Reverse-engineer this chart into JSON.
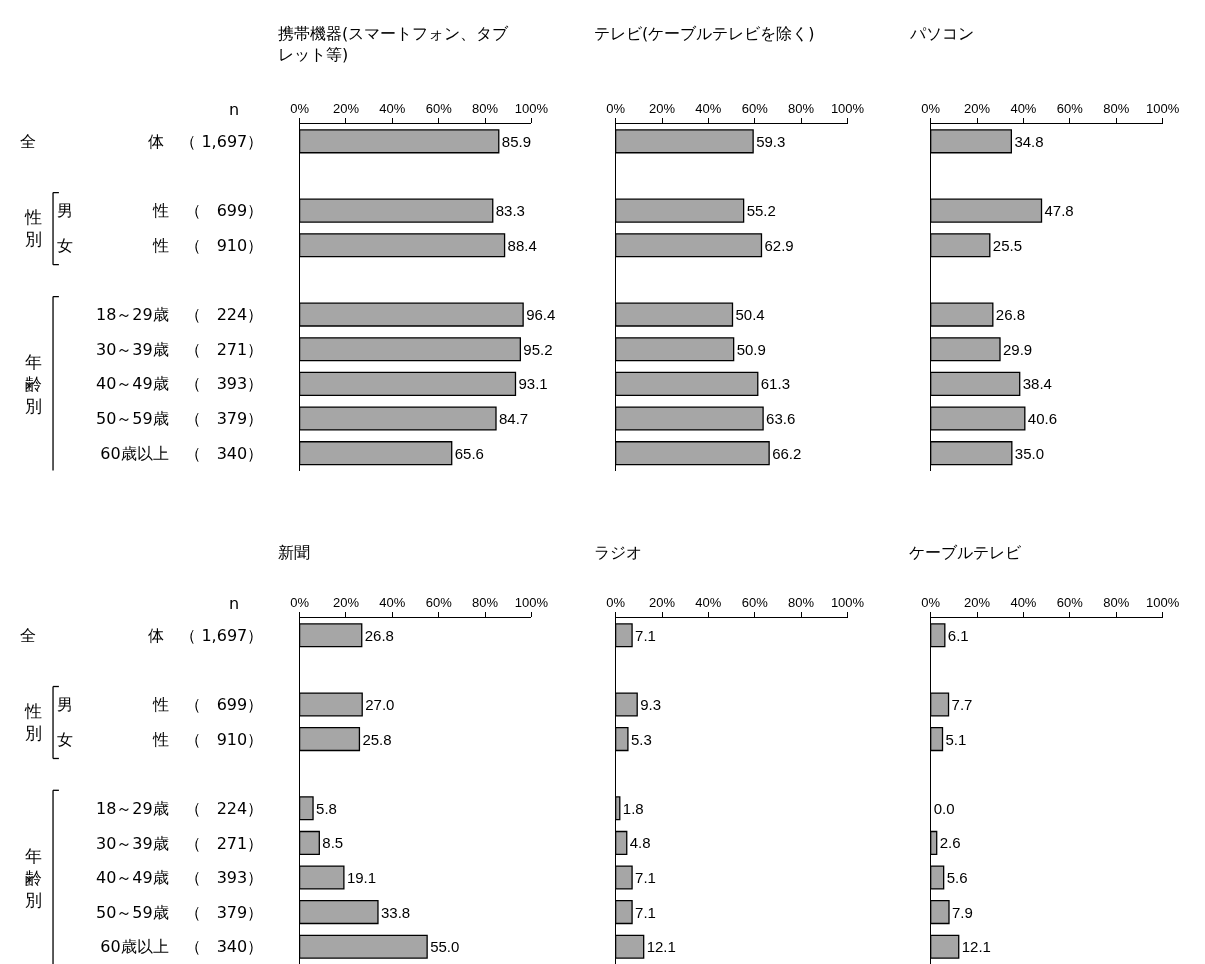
{
  "chart_data": [
    {
      "type": "bar",
      "orientation": "horizontal",
      "title": "携帯機器(スマートフォン、タブレット等)",
      "categories": [
        "全　　　　　　　体　（ 1,697）",
        null,
        "男　　　　　性　（　699）",
        "女　　　　　性　（　910）",
        null,
        "18～29歳　（　224）",
        "30～39歳　（　271）",
        "40～49歳　（　393）",
        "50～59歳　（　379）",
        "60歳以上　（　340）"
      ],
      "values": [
        85.9,
        null,
        83.3,
        88.4,
        null,
        96.4,
        95.2,
        93.1,
        84.7,
        65.6
      ],
      "value_labels": [
        "85.9",
        null,
        "83.3",
        "88.4",
        null,
        "96.4",
        "95.2",
        "93.1",
        "84.7",
        "65.6"
      ],
      "color": "#a6a6a6",
      "xlim": [
        0,
        100
      ],
      "xticks": [
        {
          "value": 0,
          "label": "0%"
        },
        {
          "value": 20,
          "label": "20%"
        },
        {
          "value": 40,
          "label": "40%"
        },
        {
          "value": 60,
          "label": "60%"
        },
        {
          "value": 80,
          "label": "80%"
        },
        {
          "value": 100,
          "label": "100%"
        }
      ],
      "annotations": [
        "n",
        "性別",
        "年齢別"
      ]
    },
    {
      "type": "bar",
      "orientation": "horizontal",
      "title": "テレビ(ケーブルテレビを除く)",
      "categories": [
        "全　　　　　　　体　（ 1,697）",
        null,
        "男　　　　　性　（　699）",
        "女　　　　　性　（　910）",
        null,
        "18～29歳　（　224）",
        "30～39歳　（　271）",
        "40～49歳　（　393）",
        "50～59歳　（　379）",
        "60歳以上　（　340）"
      ],
      "values": [
        59.3,
        null,
        55.2,
        62.9,
        null,
        50.4,
        50.9,
        61.3,
        63.6,
        66.2
      ],
      "value_labels": [
        "59.3",
        null,
        "55.2",
        "62.9",
        null,
        "50.4",
        "50.9",
        "61.3",
        "63.6",
        "66.2"
      ],
      "color": "#a6a6a6",
      "xlim": [
        0,
        100
      ],
      "xticks": [
        {
          "value": 0,
          "label": "0%"
        },
        {
          "value": 20,
          "label": "20%"
        },
        {
          "value": 40,
          "label": "40%"
        },
        {
          "value": 60,
          "label": "60%"
        },
        {
          "value": 80,
          "label": "80%"
        },
        {
          "value": 100,
          "label": "100%"
        }
      ],
      "tick_labels": "x"
    },
    {
      "type": "bar",
      "orientation": "horizontal",
      "title": "パソコン",
      "categories": [
        "全　　　　　　　体　（ 1,697）",
        null,
        "男　　　　　性　（　699）",
        "女　　　　　性　（　910）",
        null,
        "18～29歳　（　224）",
        "30～39歳　（　271）",
        "40～49歳　（　393）",
        "50～59歳　（　379）",
        "60歳以上　（　340）"
      ],
      "values": [
        34.8,
        null,
        47.8,
        25.5,
        null,
        26.8,
        29.9,
        38.4,
        40.6,
        35.0
      ],
      "value_labels": [
        "34.8",
        null,
        "47.8",
        "25.5",
        null,
        "26.8",
        "29.9",
        "38.4",
        "40.6",
        "35.0"
      ],
      "color": "#a6a6a6",
      "xlim": [
        0,
        100
      ],
      "xticks": [
        {
          "value": 0,
          "label": "0%"
        },
        {
          "value": 20,
          "label": "20%"
        },
        {
          "value": 40,
          "label": "40%"
        },
        {
          "value": 60,
          "label": "60%"
        },
        {
          "value": 80,
          "label": "80%"
        },
        {
          "value": 100,
          "label": "100%"
        }
      ],
      "tick_labels": "x"
    },
    {
      "type": "bar",
      "orientation": "horizontal",
      "title": "新聞",
      "categories": [
        "全　　　　　　　体　（ 1,697）",
        null,
        "男　　　　　性　（　699）",
        "女　　　　　性　（　910）",
        null,
        "18～29歳　（　224）",
        "30～39歳　（　271）",
        "40～49歳　（　393）",
        "50～59歳　（　379）",
        "60歳以上　（　340）"
      ],
      "values": [
        26.8,
        null,
        27.0,
        25.8,
        null,
        5.8,
        8.5,
        19.1,
        33.8,
        55.0
      ],
      "value_labels": [
        "26.8",
        null,
        "27.0",
        "25.8",
        null,
        "5.8",
        "8.5",
        "19.1",
        "33.8",
        "55.0"
      ],
      "color": "#a6a6a6",
      "xlim": [
        0,
        100
      ],
      "xticks": [
        {
          "value": 0,
          "label": "0%"
        },
        {
          "value": 20,
          "label": "20%"
        },
        {
          "value": 40,
          "label": "40%"
        },
        {
          "value": 60,
          "label": "60%"
        },
        {
          "value": 80,
          "label": "80%"
        },
        {
          "value": 100,
          "label": "100%"
        }
      ],
      "annotations": [
        "n",
        "性別",
        "年齢別"
      ]
    },
    {
      "type": "bar",
      "orientation": "horizontal",
      "title": "ラジオ",
      "categories": [
        "全　　　　　　　体　（ 1,697）",
        null,
        "男　　　　　性　（　699）",
        "女　　　　　性　（　910）",
        null,
        "18～29歳　（　224）",
        "30～39歳　（　271）",
        "40～49歳　（　393）",
        "50～59歳　（　379）",
        "60歳以上　（　340）"
      ],
      "values": [
        7.1,
        null,
        9.3,
        5.3,
        null,
        1.8,
        4.8,
        7.1,
        7.1,
        12.1
      ],
      "value_labels": [
        "7.1",
        null,
        "9.3",
        "5.3",
        null,
        "1.8",
        "4.8",
        "7.1",
        "7.1",
        "12.1"
      ],
      "color": "#a6a6a6",
      "xlim": [
        0,
        100
      ],
      "xticks": [
        {
          "value": 0,
          "label": "0%"
        },
        {
          "value": 20,
          "label": "20%"
        },
        {
          "value": 40,
          "label": "40%"
        },
        {
          "value": 60,
          "label": "60%"
        },
        {
          "value": 80,
          "label": "80%"
        },
        {
          "value": 100,
          "label": "100%"
        }
      ],
      "tick_labels": "x"
    },
    {
      "type": "bar",
      "orientation": "horizontal",
      "title": "ケーブルテレビ",
      "categories": [
        "全　　　　　　　体　（ 1,697）",
        null,
        "男　　　　　性　（　699）",
        "女　　　　　性　（　910）",
        null,
        "18～29歳　（　224）",
        "30～39歳　（　271）",
        "40～49歳　（　393）",
        "50～59歳　（　379）",
        "60歳以上　（　340）"
      ],
      "values": [
        6.1,
        null,
        7.7,
        5.1,
        null,
        0.0,
        2.6,
        5.6,
        7.9,
        12.1
      ],
      "value_labels": [
        "6.1",
        null,
        "7.7",
        "5.1",
        null,
        "0.0",
        "2.6",
        "5.6",
        "7.9",
        "12.1"
      ],
      "color": "#a6a6a6",
      "xlim": [
        0,
        100
      ],
      "xticks": [
        {
          "value": 0,
          "label": "0%"
        },
        {
          "value": 20,
          "label": "20%"
        },
        {
          "value": 40,
          "label": "40%"
        },
        {
          "value": 60,
          "label": "60%"
        },
        {
          "value": 80,
          "label": "80%"
        },
        {
          "value": 100,
          "label": "100%"
        }
      ],
      "tick_labels": "x"
    }
  ]
}
